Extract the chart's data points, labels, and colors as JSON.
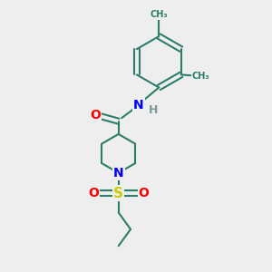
{
  "bg_color": "#eeeeee",
  "bond_color": "#2d7d6b",
  "bond_width": 1.5,
  "atom_colors": {
    "O": "#ff0000",
    "N": "#0000ff",
    "S": "#cccc00",
    "H": "#7a9a9a",
    "C": "#2d7d6b"
  },
  "font_size_atom": 10,
  "figsize": [
    3.0,
    3.0
  ],
  "dpi": 100,
  "xlim": [
    0,
    10
  ],
  "ylim": [
    0,
    10
  ]
}
